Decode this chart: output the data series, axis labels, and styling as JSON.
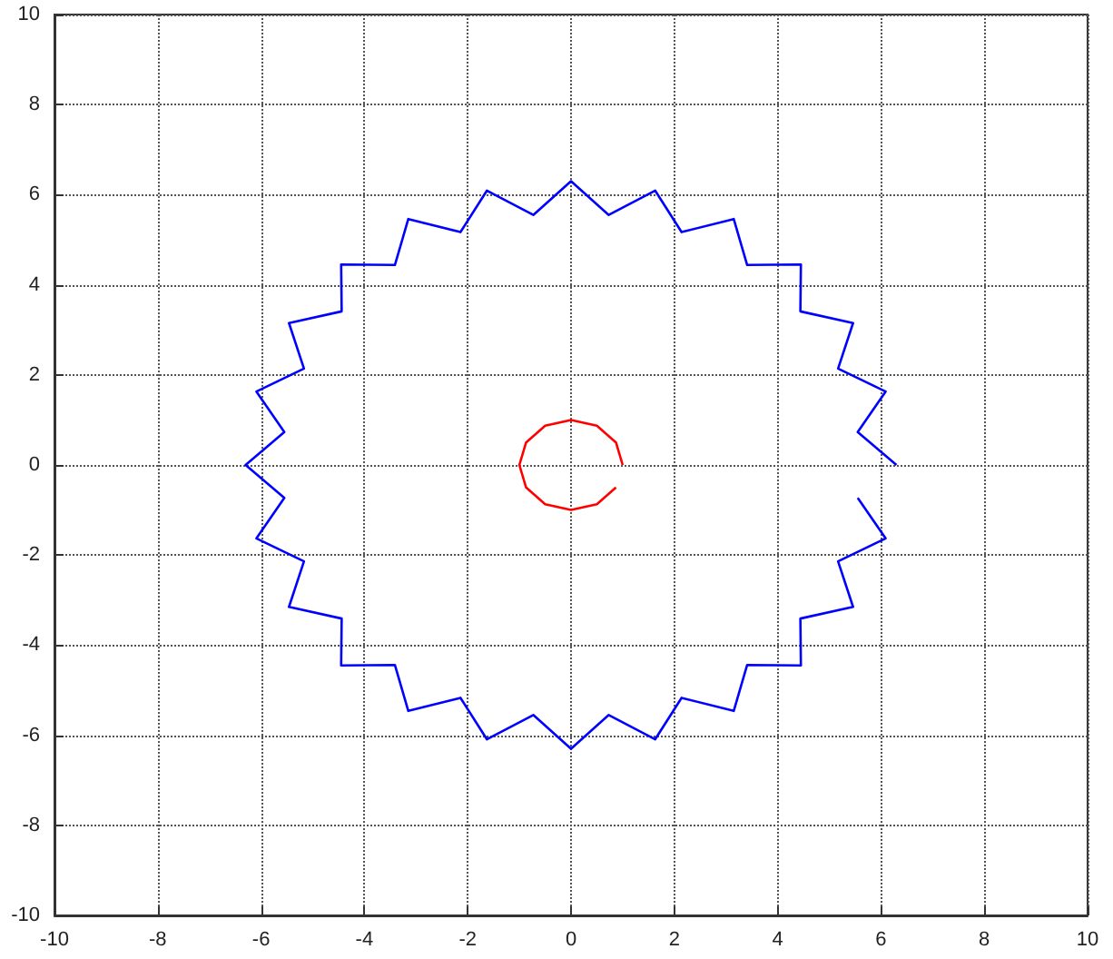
{
  "chart_data": {
    "type": "line",
    "xlim": [
      -10,
      10
    ],
    "ylim": [
      -10,
      10
    ],
    "xticks": [
      -10,
      -8,
      -6,
      -4,
      -2,
      0,
      2,
      4,
      6,
      8,
      10
    ],
    "yticks": [
      -10,
      -8,
      -6,
      -4,
      -2,
      0,
      2,
      4,
      6,
      8,
      10
    ],
    "grid": true,
    "marker": "none",
    "line_style": "solid",
    "series": [
      {
        "color": "#0000ff",
        "x": [
          6.3,
          5.55,
          6.09,
          5.17,
          5.46,
          4.44,
          4.45,
          3.41,
          3.15,
          2.14,
          1.63,
          0.73,
          0,
          -0.73,
          -1.63,
          -2.14,
          -3.15,
          -3.41,
          -4.45,
          -4.44,
          -5.46,
          -5.17,
          -6.09,
          -5.55,
          -6.3,
          -5.55,
          -6.09,
          -5.17,
          -5.46,
          -4.44,
          -4.45,
          -3.41,
          -3.15,
          -2.14,
          -1.63,
          -0.73,
          0,
          0.73,
          1.63,
          2.14,
          3.15,
          3.41,
          4.45,
          4.44,
          5.46,
          5.17,
          6.09,
          5.55
        ],
        "values": [
          0,
          0.73,
          1.63,
          2.14,
          3.15,
          3.41,
          4.45,
          4.44,
          5.46,
          5.17,
          6.09,
          5.55,
          6.3,
          5.55,
          6.09,
          5.17,
          5.46,
          4.44,
          4.45,
          3.41,
          3.15,
          2.14,
          1.63,
          0.73,
          0,
          -0.73,
          -1.63,
          -2.14,
          -3.15,
          -3.41,
          -4.45,
          -4.44,
          -5.46,
          -5.17,
          -6.09,
          -5.55,
          -6.3,
          -5.55,
          -6.09,
          -5.17,
          -5.46,
          -4.44,
          -4.45,
          -3.41,
          -3.15,
          -2.14,
          -1.63,
          -0.73
        ]
      },
      {
        "color": "#ff0000",
        "x": [
          1,
          0.87,
          0.5,
          0,
          -0.5,
          -0.87,
          -1,
          -0.87,
          -0.5,
          0,
          0.5,
          0.87
        ],
        "values": [
          0,
          0.5,
          0.87,
          1,
          0.87,
          0.5,
          0,
          -0.5,
          -0.87,
          -1,
          -0.87,
          -0.5
        ]
      }
    ]
  }
}
